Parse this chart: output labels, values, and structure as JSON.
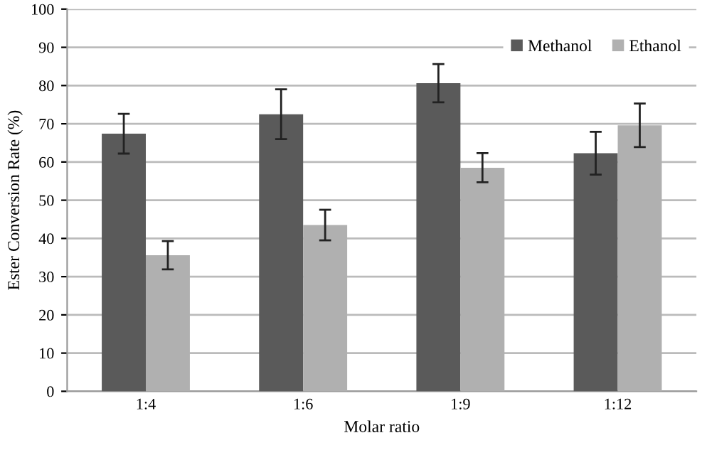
{
  "chart_data": {
    "type": "bar",
    "xlabel": "Molar ratio",
    "ylabel": "Ester Conversion Rate (%)",
    "categories": [
      "1:4",
      "1:6",
      "1:9",
      "1:12"
    ],
    "series": [
      {
        "name": "Methanol",
        "color": "#5a5a5a",
        "values": [
          67.4,
          72.5,
          80.6,
          62.3
        ],
        "errors": [
          5.2,
          6.5,
          5,
          5.6
        ]
      },
      {
        "name": "Ethanol",
        "color": "#b0b0b0",
        "values": [
          35.6,
          43.5,
          58.5,
          69.6
        ],
        "errors": [
          3.7,
          4,
          3.8,
          5.7
        ]
      }
    ],
    "ylim": [
      0,
      100
    ],
    "yticks": [
      0,
      10,
      20,
      30,
      40,
      50,
      60,
      70,
      80,
      90,
      100
    ],
    "grid": "y",
    "legend": "top right"
  }
}
